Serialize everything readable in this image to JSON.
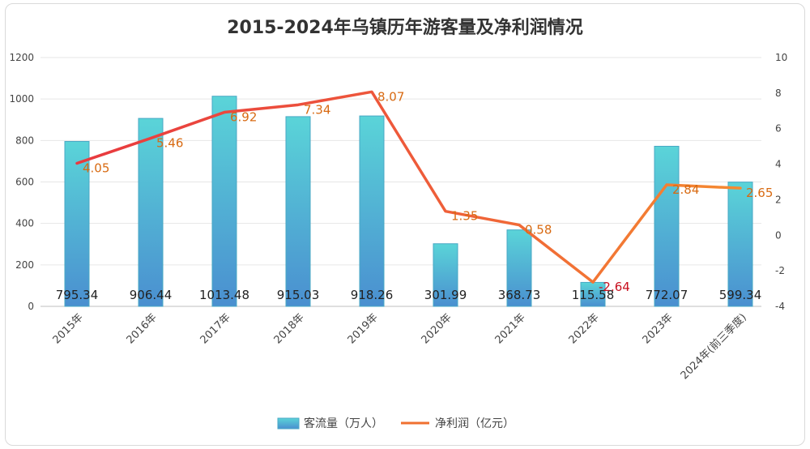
{
  "chart_data": {
    "type": "bar+line",
    "title": "2015-2024年乌镇历年游客量及净利润情况",
    "categories": [
      "2015年",
      "2016年",
      "2017年",
      "2018年",
      "2019年",
      "2020年",
      "2021年",
      "2022年",
      "2023年",
      "2024年(前三季度)"
    ],
    "y_left": {
      "min": 0,
      "max": 1200,
      "ticks": [
        0,
        200,
        400,
        600,
        800,
        1000,
        1200
      ]
    },
    "y_right": {
      "min": -4,
      "max": 10,
      "ticks": [
        -4,
        -2,
        0,
        2,
        4,
        6,
        8,
        10
      ]
    },
    "series": [
      {
        "name": "客流量（万人）",
        "type": "bar",
        "axis": "left",
        "values": [
          795.34,
          906.44,
          1013.48,
          915.03,
          918.26,
          301.99,
          368.73,
          115.58,
          772.07,
          599.34
        ],
        "labels": [
          "795.34",
          "906.44",
          "1013.48",
          "915.03",
          "918.26",
          "301.99",
          "368.73",
          "115.58",
          "772.07",
          "599.34"
        ],
        "color_top": "#5ad4d8",
        "color_bottom": "#4a8fd0"
      },
      {
        "name": "净利润（亿元）",
        "type": "line",
        "axis": "right",
        "values": [
          4.05,
          5.46,
          6.92,
          7.34,
          8.07,
          1.35,
          0.58,
          -2.64,
          2.84,
          2.65
        ],
        "labels": [
          "4.05",
          "5.46",
          "6.92",
          "7.34",
          "8.07",
          "1.35",
          "0.58",
          "-2.64",
          "2.84",
          "2.65"
        ],
        "color_start": "#e8393f",
        "color_end": "#f58a30",
        "label_color": "#d86a12",
        "negative_label_color": "#c8101f"
      }
    ],
    "grid": true,
    "legend_position": "bottom-center"
  }
}
